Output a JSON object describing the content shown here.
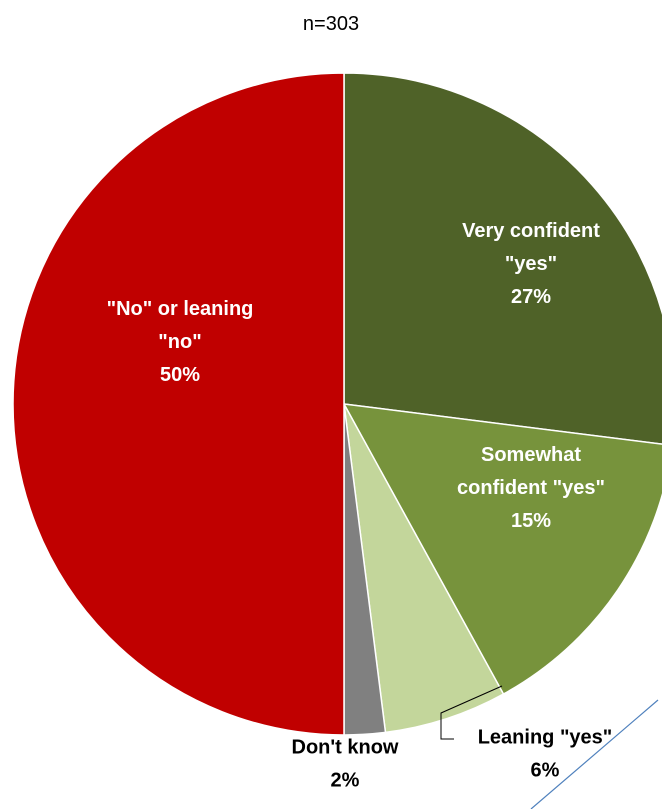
{
  "chart_data": {
    "type": "pie",
    "subtitle": "n=303",
    "legend": "none",
    "slices": [
      {
        "name": "Very confident \"yes\"",
        "value": 27,
        "label_lines": [
          "Very confident",
          "\"yes\"",
          "27%"
        ],
        "color": "#4f6228",
        "label_color": "#ffffff"
      },
      {
        "name": "Somewhat confident \"yes\"",
        "value": 15,
        "label_lines": [
          "Somewhat",
          "confident \"yes\"",
          "15%"
        ],
        "color": "#77933c",
        "label_color": "#ffffff"
      },
      {
        "name": "Leaning \"yes\"",
        "value": 6,
        "label_lines": [
          "Leaning \"yes\"",
          "6%"
        ],
        "color": "#c3d69b",
        "label_color": "#000000"
      },
      {
        "name": "Don't know",
        "value": 2,
        "label_lines": [
          "Don't know",
          "2%"
        ],
        "color": "#808080",
        "label_color": "#000000"
      },
      {
        "name": "\"No\" or leaning \"no\"",
        "value": 50,
        "label_lines": [
          "\"No\" or leaning",
          "\"no\"",
          "50%"
        ],
        "color": "#c00000",
        "label_color": "#ffffff"
      }
    ]
  }
}
